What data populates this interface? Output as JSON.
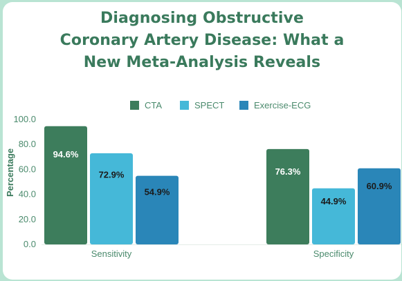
{
  "chart_data": {
    "type": "bar",
    "title_lines": [
      "Diagnosing Obstructive",
      "Coronary Artery Disease: What a",
      "New Meta-Analysis Reveals"
    ],
    "xlabel": "",
    "ylabel": "Percentage",
    "ylim": [
      0,
      100
    ],
    "yticks": [
      "0.0",
      "20.0",
      "40.0",
      "60.0",
      "80.0",
      "100.0"
    ],
    "categories": [
      "Sensitivity",
      "Specificity"
    ],
    "series": [
      {
        "name": "CTA",
        "values": [
          94.6,
          76.3
        ],
        "labels": [
          "94.6%",
          "76.3%"
        ],
        "color": "#3d7d5c",
        "label_style": "light"
      },
      {
        "name": "SPECT",
        "values": [
          72.9,
          44.9
        ],
        "labels": [
          "72.9%",
          "44.9%"
        ],
        "color": "#45b8d8",
        "label_style": "dark"
      },
      {
        "name": "Exercise-ECG",
        "values": [
          54.9,
          60.9
        ],
        "labels": [
          "54.9%",
          "60.9%"
        ],
        "color": "#2a86b8",
        "label_style": "dark"
      }
    ],
    "legend_position": "top",
    "grid": false
  }
}
